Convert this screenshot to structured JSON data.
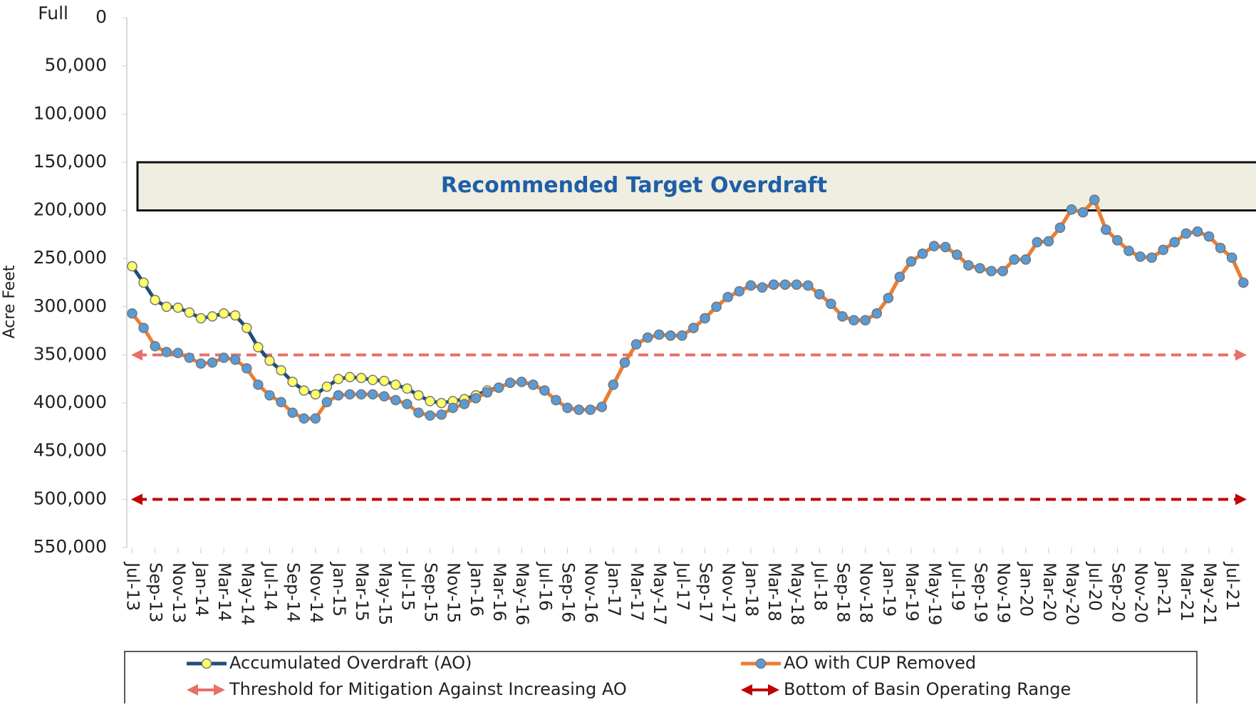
{
  "chart_data": {
    "type": "line",
    "y_axis_label": "Acre Feet",
    "y_top_label": "Full",
    "ylim": [
      0,
      550000
    ],
    "y_inverted": true,
    "yticks": [
      0,
      {
        "value": 50000,
        "label": "50,000"
      },
      {
        "value": 100000,
        "label": "100,000"
      },
      {
        "value": 150000,
        "label": "150,000"
      },
      {
        "value": 200000,
        "label": "200,000"
      },
      {
        "value": 250000,
        "label": "250,000"
      },
      {
        "value": 300000,
        "label": "300,000"
      },
      {
        "value": 350000,
        "label": "350,000"
      },
      {
        "value": 400000,
        "label": "400,000"
      },
      {
        "value": 450000,
        "label": "450,000"
      },
      {
        "value": 500000,
        "label": "500,000"
      },
      {
        "value": 550000,
        "label": "550,000"
      }
    ],
    "categories": [
      "Jul-13",
      null,
      "Sep-13",
      null,
      "Nov-13",
      null,
      "Jan-14",
      null,
      "Mar-14",
      null,
      "May-14",
      null,
      "Jul-14",
      null,
      "Sep-14",
      null,
      "Nov-14",
      null,
      "Jan-15",
      null,
      "Mar-15",
      null,
      "May-15",
      null,
      "Jul-15",
      null,
      "Sep-15",
      null,
      "Nov-15",
      null,
      "Jan-16",
      null,
      "Mar-16",
      null,
      "May-16",
      null,
      "Jul-16",
      null,
      "Sep-16",
      null,
      "Nov-16",
      null,
      "Jan-17",
      null,
      "Mar-17",
      null,
      "May-17",
      null,
      "Jul-17",
      null,
      "Sep-17",
      null,
      "Nov-17",
      null,
      "Jan-18",
      null,
      "Mar-18",
      null,
      "May-18",
      null,
      "Jul-18",
      null,
      "Sep-18",
      null,
      "Nov-18",
      null,
      "Jan-19",
      null,
      "Mar-19",
      null,
      "May-19",
      null,
      "Jul-19",
      null,
      "Sep-19",
      null,
      "Nov-19",
      null,
      "Jan-20",
      null,
      "Mar-20",
      null,
      "May-20",
      null,
      "Jul-20",
      null,
      "Sep-20",
      null,
      "Nov-20",
      null,
      "Jan-21",
      null,
      "Mar-21",
      null,
      "May-21",
      null,
      "Jul-21",
      null
    ],
    "target_band": {
      "label": "Recommended Target Overdraft",
      "range": [
        150000,
        200000
      ],
      "color": "#efeee0"
    },
    "series": [
      {
        "name": "Accumulated Overdraft (AO)",
        "color": "#1f4e79",
        "marker_color": "#ffff66",
        "values": [
          258000,
          275000,
          293000,
          300000,
          301000,
          306000,
          312000,
          310000,
          307000,
          309000,
          322000,
          342000,
          356000,
          366000,
          378000,
          387000,
          391000,
          383000,
          375000,
          373000,
          374000,
          376000,
          377000,
          381000,
          385000,
          392000,
          398000,
          400000,
          398000,
          396000,
          392000,
          387000,
          384000,
          379000,
          378000,
          381000,
          387000,
          397000,
          405000,
          407000,
          407000,
          404000,
          381000,
          358000,
          339000,
          332000,
          329000,
          330000,
          330000,
          322000,
          312000,
          300000,
          290000,
          284000,
          278000,
          280000,
          277000,
          277000,
          277000,
          278000,
          287000,
          297000,
          310000,
          314000,
          314000,
          307000,
          291000,
          269000,
          253000,
          245000,
          237000,
          238000,
          246000,
          257000,
          260000,
          263000,
          263000,
          251000,
          251000,
          233000,
          232000,
          218000,
          199000,
          202000,
          189000,
          220000,
          231000,
          242000,
          248000,
          249000,
          241000,
          233000,
          224000,
          222000,
          227000,
          239000,
          249000,
          275000
        ]
      },
      {
        "name": "AO with CUP Removed",
        "color": "#ed7d31",
        "marker_color": "#5b9bd5",
        "values": [
          307000,
          322000,
          341000,
          347000,
          348000,
          353000,
          359000,
          358000,
          353000,
          355000,
          364000,
          381000,
          392000,
          399000,
          410000,
          416000,
          416000,
          399000,
          392000,
          391000,
          391000,
          391000,
          393000,
          397000,
          401000,
          410000,
          413000,
          412000,
          405000,
          401000,
          395000,
          389000,
          384000,
          379000,
          378000,
          381000,
          387000,
          397000,
          405000,
          407000,
          407000,
          404000,
          381000,
          358000,
          339000,
          332000,
          329000,
          330000,
          330000,
          322000,
          312000,
          300000,
          290000,
          284000,
          278000,
          280000,
          277000,
          277000,
          277000,
          278000,
          287000,
          297000,
          310000,
          314000,
          314000,
          307000,
          291000,
          269000,
          253000,
          245000,
          237000,
          238000,
          246000,
          257000,
          260000,
          263000,
          263000,
          251000,
          251000,
          233000,
          232000,
          218000,
          199000,
          202000,
          189000,
          220000,
          231000,
          242000,
          248000,
          249000,
          241000,
          233000,
          224000,
          222000,
          227000,
          239000,
          249000,
          275000
        ]
      }
    ],
    "reference_lines": [
      {
        "name": "Threshold for Mitigation Against Increasing AO",
        "color": "#e8706a",
        "value": 350000
      },
      {
        "name": "Bottom of Basin Operating Range",
        "color": "#c00000",
        "value": 500000
      }
    ]
  }
}
